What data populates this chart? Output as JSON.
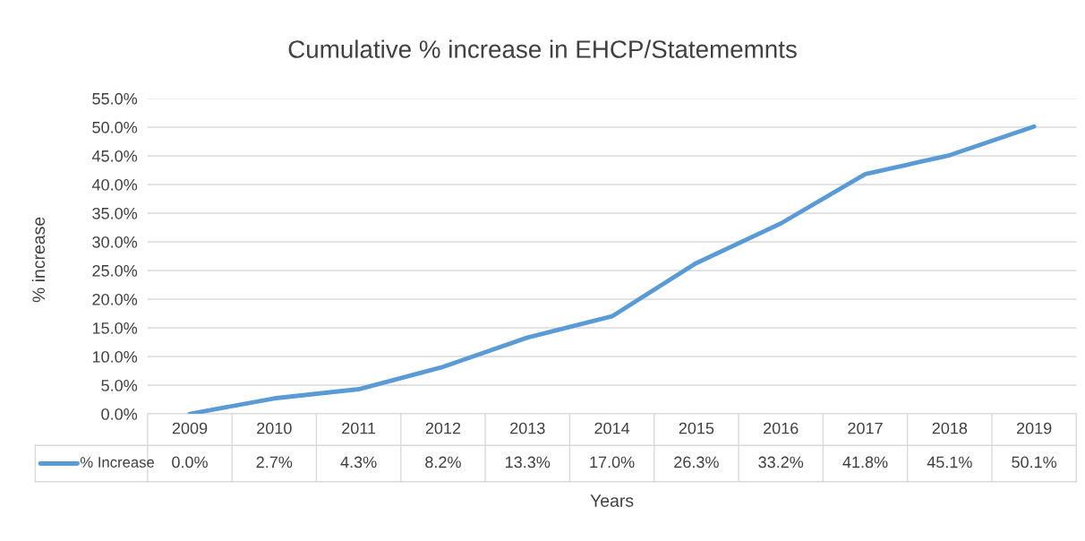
{
  "chart_data": {
    "type": "line",
    "title": "Cumulative % increase in EHCP/Statememnts",
    "xlabel": "Years",
    "ylabel": "% increase",
    "categories": [
      "2009",
      "2010",
      "2011",
      "2012",
      "2013",
      "2014",
      "2015",
      "2016",
      "2017",
      "2018",
      "2019"
    ],
    "series": [
      {
        "name": "% Increase",
        "color": "#5b9bd5",
        "values": [
          0.0,
          2.7,
          4.3,
          8.2,
          13.3,
          17.0,
          26.3,
          33.2,
          41.8,
          45.1,
          50.1
        ],
        "value_labels": [
          "0.0%",
          "2.7%",
          "4.3%",
          "8.2%",
          "13.3%",
          "17.0%",
          "26.3%",
          "33.2%",
          "41.8%",
          "45.1%",
          "50.1%"
        ]
      }
    ],
    "ylim": [
      0,
      55
    ],
    "yticks": [
      {
        "value": 0,
        "label": "0.0%"
      },
      {
        "value": 5,
        "label": "5.0%"
      },
      {
        "value": 10,
        "label": "10.0%"
      },
      {
        "value": 15,
        "label": "15.0%"
      },
      {
        "value": 20,
        "label": "20.0%"
      },
      {
        "value": 25,
        "label": "25.0%"
      },
      {
        "value": 30,
        "label": "30.0%"
      },
      {
        "value": 35,
        "label": "35.0%"
      },
      {
        "value": 40,
        "label": "40.0%"
      },
      {
        "value": 45,
        "label": "45.0%"
      },
      {
        "value": 50,
        "label": "50.0%"
      },
      {
        "value": 55,
        "label": "55.0%"
      }
    ],
    "grid": "y",
    "legend": "bottom"
  }
}
